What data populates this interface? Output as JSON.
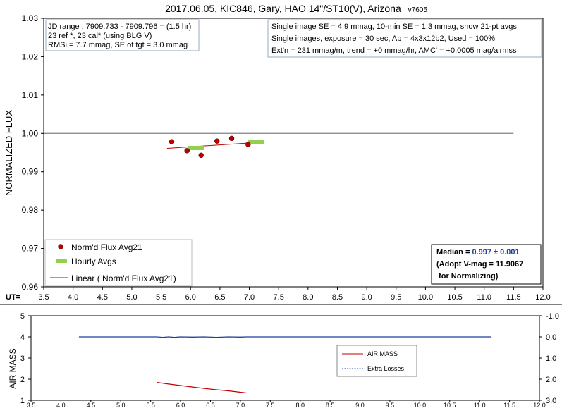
{
  "chart_data": [
    {
      "type": "scatter",
      "title": "2017.06.05, KIC846, Gary, HAO 14\"/ST10(V), Arizona",
      "title_suffix": "v7605",
      "ylabel": "NORMALIZED FLUX",
      "xlabel_prefix": "UT=",
      "xlim": [
        3.5,
        12.0
      ],
      "ylim": [
        0.96,
        1.03
      ],
      "x_ticks": [
        "3.5",
        "4.0",
        "4.5",
        "5.0",
        "5.5",
        "6.0",
        "6.5",
        "7.0",
        "7.5",
        "8.0",
        "8.5",
        "9.0",
        "9.5",
        "10.0",
        "10.5",
        "11.0",
        "11.5",
        "12.0"
      ],
      "y_ticks": [
        "0.96",
        "0.97",
        "0.98",
        "0.99",
        "1.00",
        "1.01",
        "1.02",
        "1.03"
      ],
      "reference_line": {
        "y": 1.0,
        "x": [
          3.5,
          11.5
        ]
      },
      "info_left": [
        "JD range : 7909.733 - 7909.796 = (1.5 hr)",
        "23 ref *, 23 cal* (using BLG V)",
        "RMSi = 7.7 mmag, SE of tgt = 3.0 mmag"
      ],
      "info_right": [
        "Single image SE = 4.9 mmag, 10-min SE = 1.3 mmag, show 21-pt avgs",
        "Single images, exposure = 30 sec, Ap = 4x3x12b2, Used = 100%",
        "Ext'n = 231 mmag/m, trend = +0 mmag/hr, AMC' = +0.0005 mag/airmss"
      ],
      "median_box": {
        "label": "Median = ",
        "value": "0.997 ± 0.001",
        "line2": "(Adopt V-mag = 11.9067",
        "line3": " for Normalizing)"
      },
      "series": [
        {
          "name": "Norm'd Flux Avg21",
          "color": "#c00000",
          "x": [
            5.68,
            5.94,
            6.18,
            6.45,
            6.7,
            6.98
          ],
          "y": [
            0.9978,
            0.9955,
            0.9943,
            0.998,
            0.9987,
            0.9971
          ]
        },
        {
          "name": "Hourly Avgs",
          "color": "#92d050",
          "segments": [
            {
              "x": [
                5.95,
                6.23
              ],
              "y": 0.9962
            },
            {
              "x": [
                6.97,
                7.25
              ],
              "y": 0.9978
            }
          ]
        },
        {
          "name": "Linear ( Norm'd Flux Avg21)",
          "color": "#c00000",
          "x": [
            5.6,
            7.1
          ],
          "y": [
            0.9961,
            0.9976
          ]
        }
      ]
    },
    {
      "type": "line",
      "ylabel": "AIR MASS",
      "xlim": [
        3.5,
        12.0
      ],
      "ylim": [
        1,
        5
      ],
      "y2lim": [
        -1.0,
        3.0
      ],
      "x_ticks": [
        "3.5",
        "4.0",
        "4.5",
        "5.0",
        "5.5",
        "6.0",
        "6.5",
        "7.0",
        "7.5",
        "8.0",
        "8.5",
        "9.0",
        "9.5",
        "10.0",
        "10.5",
        "11.0",
        "11.5",
        "12.0"
      ],
      "y_ticks": [
        "1",
        "2",
        "3",
        "4",
        "5"
      ],
      "y2_ticks": [
        "-1.0",
        "0.0",
        "1.0",
        "2.0",
        "3.0"
      ],
      "series": [
        {
          "name": "AIR MASS",
          "color": "#c00000",
          "x": [
            5.6,
            5.8,
            6.0,
            6.2,
            6.4,
            6.6,
            6.8,
            7.1
          ],
          "y": [
            1.85,
            1.77,
            1.7,
            1.63,
            1.56,
            1.5,
            1.45,
            1.35
          ]
        },
        {
          "name": "Extra Losses",
          "color": "#1f3f9f",
          "x": [
            4.3,
            5.6,
            5.7,
            5.8,
            5.9,
            6.0,
            6.2,
            6.4,
            6.6,
            6.8,
            7.0,
            7.1,
            11.2
          ],
          "y": [
            0.0,
            0.0,
            0.02,
            0.0,
            0.02,
            0.0,
            0.01,
            0.0,
            0.02,
            0.0,
            0.01,
            0.0,
            0.0
          ]
        }
      ]
    }
  ]
}
